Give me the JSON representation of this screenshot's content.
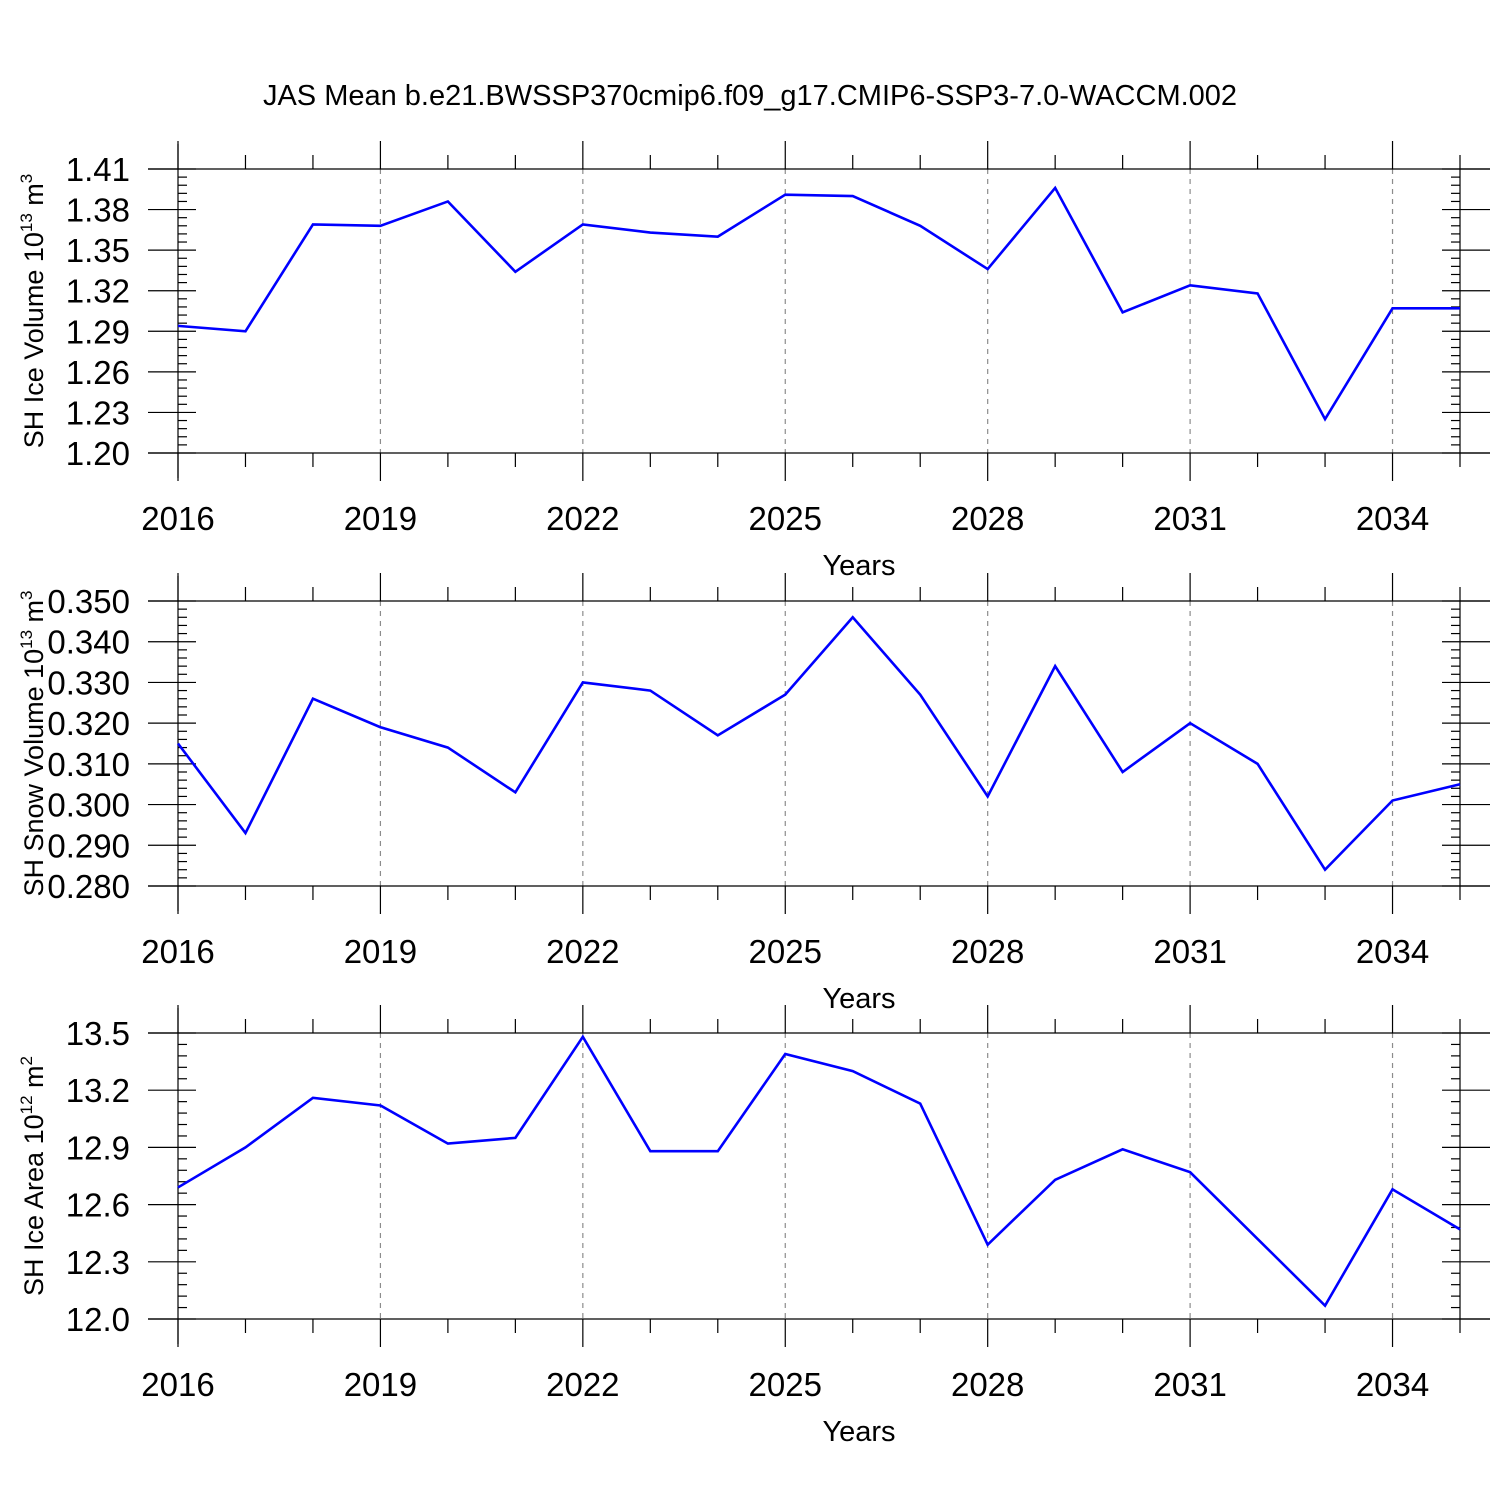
{
  "title": "JAS Mean b.e21.BWSSP370cmip6.f09_g17.CMIP6-SSP3-7.0-WACCM.002",
  "colors": {
    "line": "#0000ff",
    "axis": "#000000",
    "grid": "#8c8c8c"
  },
  "chart_data": [
    {
      "type": "line",
      "ylabel": "SH Ice Volume 10",
      "ylabel_sup": "13",
      "ylabel_unit": "m",
      "ylabel_unit_sup": "3",
      "xlabel": "Years",
      "xlim": [
        2016,
        2035
      ],
      "ylim": [
        1.2,
        1.41
      ],
      "xticks": [
        "2016",
        "2019",
        "2022",
        "2025",
        "2028",
        "2031",
        "2034"
      ],
      "yticks": [
        "1.20",
        "1.23",
        "1.26",
        "1.29",
        "1.32",
        "1.35",
        "1.38",
        "1.41"
      ],
      "x": [
        2016,
        2017,
        2018,
        2019,
        2020,
        2021,
        2022,
        2023,
        2024,
        2025,
        2026,
        2027,
        2028,
        2029,
        2030,
        2031,
        2032,
        2033,
        2034,
        2035
      ],
      "series": [
        {
          "values": [
            1.294,
            1.29,
            1.369,
            1.368,
            1.386,
            1.334,
            1.369,
            1.363,
            1.36,
            1.391,
            1.39,
            1.368,
            1.336,
            1.396,
            1.304,
            1.324,
            1.318,
            1.225,
            1.307,
            1.307
          ]
        }
      ]
    },
    {
      "type": "line",
      "ylabel": "SH Snow Volume 10",
      "ylabel_sup": "13",
      "ylabel_unit": "m",
      "ylabel_unit_sup": "3",
      "xlabel": "Years",
      "xlim": [
        2016,
        2035
      ],
      "ylim": [
        0.28,
        0.35
      ],
      "xticks": [
        "2016",
        "2019",
        "2022",
        "2025",
        "2028",
        "2031",
        "2034"
      ],
      "yticks": [
        "0.280",
        "0.290",
        "0.300",
        "0.310",
        "0.320",
        "0.330",
        "0.340",
        "0.350"
      ],
      "x": [
        2016,
        2017,
        2018,
        2019,
        2020,
        2021,
        2022,
        2023,
        2024,
        2025,
        2026,
        2027,
        2028,
        2029,
        2030,
        2031,
        2032,
        2033,
        2034,
        2035
      ],
      "series": [
        {
          "values": [
            0.315,
            0.293,
            0.326,
            0.319,
            0.314,
            0.303,
            0.33,
            0.328,
            0.317,
            0.327,
            0.346,
            0.327,
            0.302,
            0.334,
            0.308,
            0.32,
            0.31,
            0.284,
            0.301,
            0.305
          ]
        }
      ]
    },
    {
      "type": "line",
      "ylabel": "SH Ice Area 10",
      "ylabel_sup": "12",
      "ylabel_unit": "m",
      "ylabel_unit_sup": "2",
      "xlabel": "Years",
      "xlim": [
        2016,
        2035
      ],
      "ylim": [
        12.0,
        13.5
      ],
      "xticks": [
        "2016",
        "2019",
        "2022",
        "2025",
        "2028",
        "2031",
        "2034"
      ],
      "yticks": [
        "12.0",
        "12.3",
        "12.6",
        "12.9",
        "13.2",
        "13.5"
      ],
      "x": [
        2016,
        2017,
        2018,
        2019,
        2020,
        2021,
        2022,
        2023,
        2024,
        2025,
        2026,
        2027,
        2028,
        2029,
        2030,
        2031,
        2032,
        2033,
        2034,
        2035
      ],
      "series": [
        {
          "values": [
            12.69,
            12.9,
            13.16,
            13.12,
            12.92,
            12.95,
            13.48,
            12.88,
            12.88,
            13.39,
            13.3,
            13.13,
            12.39,
            12.73,
            12.89,
            12.77,
            12.42,
            12.07,
            12.68,
            12.47
          ]
        }
      ]
    }
  ]
}
